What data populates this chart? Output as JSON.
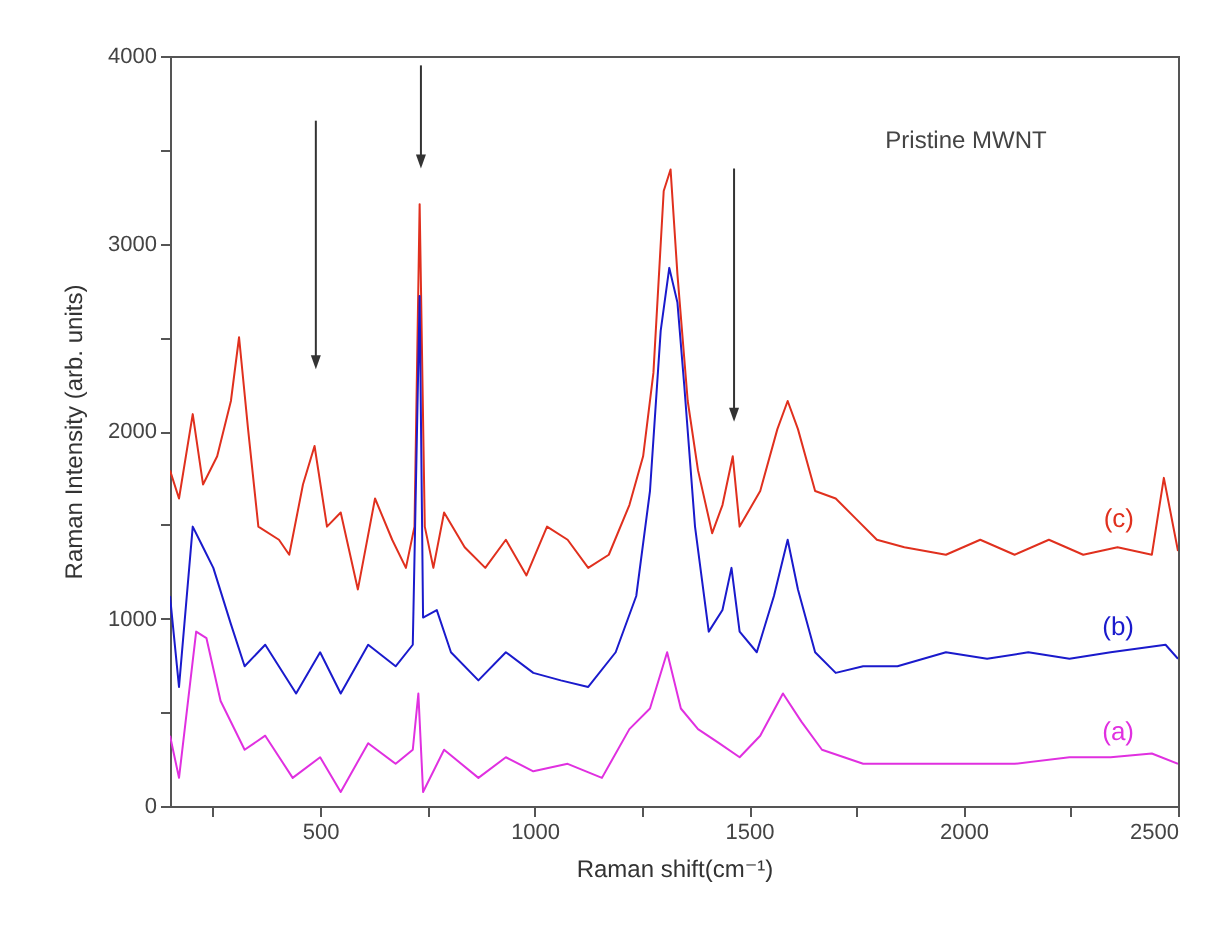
{
  "chart_data": {
    "type": "line",
    "xlabel": "Raman shift(cm⁻¹)",
    "ylabel": "Raman Intensity (arb. units)",
    "annotations": [
      "Pristine MWNT"
    ],
    "xlim": [
      150,
      2500
    ],
    "xticks": [
      {
        "value": 250,
        "label": null
      },
      500,
      {
        "value": 750,
        "label": null
      },
      1000,
      {
        "value": 1250,
        "label": null
      },
      1500,
      {
        "value": 1750,
        "label": null
      },
      2000,
      {
        "value": 2250,
        "label": null
      },
      2500
    ],
    "ylim": [
      0,
      4000
    ],
    "yticks": [
      0,
      {
        "value": 500,
        "label": null
      },
      1000,
      {
        "value": 1500,
        "label": null
      },
      2000,
      {
        "value": 2500,
        "label": null
      },
      3000,
      {
        "value": 3500,
        "label": null
      },
      4000
    ],
    "marker": "none",
    "line_style": "solid",
    "series": [
      {
        "name": "(c)",
        "color": "#e0301e",
        "x": [
          150,
          171,
          203,
          227,
          260,
          292,
          311,
          332,
          356,
          404,
          428,
          460,
          487,
          516,
          548,
          588,
          628,
          668,
          700,
          720,
          732,
          744,
          764,
          789,
          837,
          885,
          933,
          981,
          1029,
          1077,
          1125,
          1173,
          1221,
          1253,
          1277,
          1301,
          1317,
          1333,
          1357,
          1381,
          1414,
          1438,
          1462,
          1478,
          1526,
          1566,
          1590,
          1614,
          1654,
          1702,
          1750,
          1798,
          1862,
          1959,
          2039,
          2119,
          2199,
          2279,
          2359,
          2439,
          2467,
          2500
        ],
        "values": [
          1790,
          1640,
          2090,
          1715,
          1865,
          2160,
          2500,
          2010,
          1490,
          1420,
          1340,
          1715,
          1920,
          1490,
          1565,
          1155,
          1640,
          1420,
          1270,
          1490,
          3210,
          1490,
          1270,
          1565,
          1380,
          1270,
          1420,
          1230,
          1490,
          1420,
          1270,
          1340,
          1605,
          1865,
          2310,
          3280,
          3395,
          2835,
          2160,
          1790,
          1455,
          1605,
          1865,
          1490,
          1680,
          2010,
          2160,
          2010,
          1680,
          1640,
          1530,
          1420,
          1380,
          1340,
          1420,
          1340,
          1420,
          1340,
          1380,
          1340,
          1750,
          1360
        ]
      },
      {
        "name": "(b)",
        "color": "#1a1acc",
        "x": [
          150,
          171,
          203,
          227,
          251,
          292,
          324,
          372,
          444,
          500,
          548,
          612,
          676,
          716,
          732,
          740,
          772,
          805,
          869,
          933,
          997,
          1061,
          1125,
          1189,
          1237,
          1269,
          1294,
          1314,
          1333,
          1349,
          1374,
          1406,
          1438,
          1459,
          1478,
          1518,
          1558,
          1590,
          1614,
          1654,
          1702,
          1766,
          1846,
          1959,
          2055,
          2151,
          2247,
          2343,
          2471,
          2500
        ],
        "values": [
          1120,
          635,
          1490,
          1380,
          1270,
          970,
          745,
          860,
          600,
          820,
          600,
          860,
          745,
          860,
          2720,
          1005,
          1045,
          820,
          670,
          820,
          710,
          670,
          635,
          820,
          1120,
          1680,
          2535,
          2870,
          2685,
          2240,
          1490,
          930,
          1045,
          1270,
          930,
          820,
          1120,
          1420,
          1155,
          820,
          710,
          745,
          745,
          820,
          785,
          820,
          785,
          820,
          860,
          785
        ]
      },
      {
        "name": "(a)",
        "color": "#e030e0",
        "x": [
          150,
          171,
          211,
          235,
          268,
          324,
          372,
          436,
          500,
          548,
          612,
          676,
          716,
          729,
          740,
          789,
          869,
          933,
          997,
          1077,
          1157,
          1221,
          1269,
          1309,
          1341,
          1381,
          1430,
          1478,
          1526,
          1579,
          1622,
          1670,
          1766,
          1878,
          1991,
          2119,
          2247,
          2343,
          2439,
          2500
        ],
        "values": [
          375,
          150,
          930,
          895,
          560,
          300,
          375,
          150,
          260,
          75,
          335,
          225,
          300,
          600,
          75,
          300,
          150,
          260,
          185,
          225,
          150,
          410,
          520,
          820,
          520,
          410,
          335,
          260,
          375,
          600,
          450,
          300,
          225,
          225,
          225,
          225,
          260,
          260,
          280,
          225
        ]
      }
    ]
  }
}
